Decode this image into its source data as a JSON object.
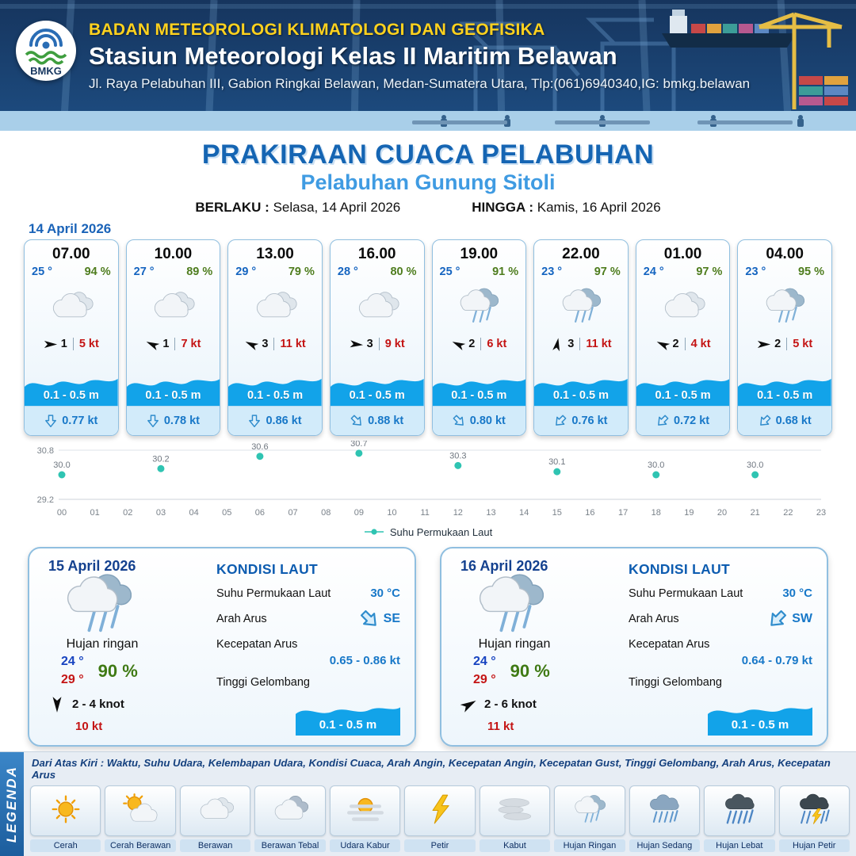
{
  "colors": {
    "navy1": "#16355e",
    "navy2": "#1d4d82",
    "yellow": "#ffd21e",
    "title_blue": "#1565b3",
    "sub_blue": "#3f9be2",
    "accent": "#1a63b8",
    "green": "#4e7d1e",
    "red": "#c41414",
    "cur_blue": "#1878c8",
    "wave_blue": "#12a3e9",
    "card_border": "#90bfe0",
    "foot_blue": "#d2ebfa"
  },
  "header": {
    "agency": "BADAN METEOROLOGI KLIMATOLOGI DAN GEOFISIKA",
    "station": "Stasiun Meteorologi Kelas II Maritim Belawan",
    "address": "Jl. Raya Pelabuhan III, Gabion Ringkai Belawan, Medan-Sumatera Utara, Tlp:(061)6940340,IG: bmkg.belawan",
    "logo_text": "BMKG"
  },
  "title": {
    "main": "PRAKIRAAN CUACA PELABUHAN",
    "subtitle": "Pelabuhan Gunung Sitoli",
    "berlaku_label": "BERLAKU :",
    "berlaku_value": "Selasa, 14 April 2026",
    "hingga_label": "HINGGA :",
    "hingga_value": "Kamis, 16 April 2026"
  },
  "forecast_date": "14 April 2026",
  "hourly": [
    {
      "time": "07.00",
      "temp": "25 °",
      "rh": "94 %",
      "icon": "cloud",
      "wind_icon": "wind-arrow",
      "wind_rot": 0,
      "wind_speed": "1",
      "gust": "5 kt",
      "wave": "0.1 - 0.5 m",
      "current_icon": "current-arrow",
      "current_rot": 0,
      "current": "0.77 kt"
    },
    {
      "time": "10.00",
      "temp": "27 °",
      "rh": "89 %",
      "icon": "cloud",
      "wind_icon": "wind-arrow",
      "wind_rot": 205,
      "wind_speed": "1",
      "gust": "7 kt",
      "wave": "0.1 - 0.5 m",
      "current_icon": "current-arrow",
      "current_rot": 0,
      "current": "0.78 kt"
    },
    {
      "time": "13.00",
      "temp": "29 °",
      "rh": "79 %",
      "icon": "cloud",
      "wind_icon": "wind-arrow",
      "wind_rot": 205,
      "wind_speed": "3",
      "gust": "11 kt",
      "wave": "0.1 - 0.5 m",
      "current_icon": "current-arrow",
      "current_rot": 0,
      "current": "0.86 kt"
    },
    {
      "time": "16.00",
      "temp": "28 °",
      "rh": "80 %",
      "icon": "cloud",
      "wind_icon": "wind-arrow",
      "wind_rot": 5,
      "wind_speed": "3",
      "gust": "9 kt",
      "wave": "0.1 - 0.5 m",
      "current_icon": "current-arrow",
      "current_rot": -45,
      "current": "0.88 kt"
    },
    {
      "time": "19.00",
      "temp": "25 °",
      "rh": "91 %",
      "icon": "rain-light",
      "wind_icon": "wind-arrow",
      "wind_rot": 205,
      "wind_speed": "2",
      "gust": "6 kt",
      "wave": "0.1 - 0.5 m",
      "current_icon": "current-arrow",
      "current_rot": -45,
      "current": "0.80 kt"
    },
    {
      "time": "22.00",
      "temp": "23 °",
      "rh": "97 %",
      "icon": "rain-light",
      "wind_icon": "wind-arrow",
      "wind_rot": 280,
      "wind_speed": "3",
      "gust": "11 kt",
      "wave": "0.1 - 0.5 m",
      "current_icon": "current-arrow",
      "current_rot": 45,
      "current": "0.76 kt"
    },
    {
      "time": "01.00",
      "temp": "24 °",
      "rh": "97 %",
      "icon": "cloud",
      "wind_icon": "wind-arrow",
      "wind_rot": 205,
      "wind_speed": "2",
      "gust": "4 kt",
      "wave": "0.1 - 0.5 m",
      "current_icon": "current-arrow",
      "current_rot": 45,
      "current": "0.72 kt"
    },
    {
      "time": "04.00",
      "temp": "23 °",
      "rh": "95 %",
      "icon": "rain-light",
      "wind_icon": "wind-arrow",
      "wind_rot": 0,
      "wind_speed": "2",
      "gust": "5 kt",
      "wave": "0.1 - 0.5 m",
      "current_icon": "current-arrow",
      "current_rot": 45,
      "current": "0.68 kt"
    }
  ],
  "chart_data": {
    "type": "line",
    "legend": "Suhu Permukaan Laut",
    "x_ticks": [
      "00",
      "01",
      "02",
      "03",
      "04",
      "05",
      "06",
      "07",
      "08",
      "09",
      "10",
      "11",
      "12",
      "13",
      "14",
      "15",
      "16",
      "17",
      "18",
      "19",
      "20",
      "21",
      "22",
      "23"
    ],
    "points": [
      {
        "h": 0,
        "v": 30.0
      },
      {
        "h": 3,
        "v": 30.2
      },
      {
        "h": 6,
        "v": 30.6
      },
      {
        "h": 9,
        "v": 30.7
      },
      {
        "h": 12,
        "v": 30.3
      },
      {
        "h": 15,
        "v": 30.1
      },
      {
        "h": 18,
        "v": 30.0
      },
      {
        "h": 21,
        "v": 30.0
      }
    ],
    "ylim": [
      29.2,
      30.8
    ],
    "point_color": "#2fc4b2"
  },
  "days": [
    {
      "date": "15 April 2026",
      "icon": "rain-light",
      "condition": "Hujan ringan",
      "temp_min": "24 °",
      "temp_max": "29 °",
      "rh": "90 %",
      "wind_icon": "wind-arrow",
      "wind_rot": 90,
      "wind_range": "2 - 4 knot",
      "gust": "10 kt",
      "sea": {
        "heading": "KONDISI LAUT",
        "sst_label": "Suhu Permukaan Laut",
        "sst": "30 °C",
        "dir_label": "Arah Arus",
        "dir": "SE",
        "dir_icon": "current-arrow",
        "dir_rot": -45,
        "speed_label": "Kecepatan Arus",
        "speed": "0.65 - 0.86 kt",
        "wave_label": "Tinggi Gelombang",
        "wave": "0.1 - 0.5 m"
      }
    },
    {
      "date": "16 April 2026",
      "icon": "rain-light",
      "condition": "Hujan ringan",
      "temp_min": "24 °",
      "temp_max": "29 °",
      "rh": "90 %",
      "wind_icon": "wind-arrow",
      "wind_rot": -30,
      "wind_range": "2 - 6 knot",
      "gust": "11 kt",
      "sea": {
        "heading": "KONDISI LAUT",
        "sst_label": "Suhu Permukaan Laut",
        "sst": "30 °C",
        "dir_label": "Arah Arus",
        "dir": "SW",
        "dir_icon": "current-arrow",
        "dir_rot": 45,
        "speed_label": "Kecepatan Arus",
        "speed": "0.64 - 0.79 kt",
        "wave_label": "Tinggi Gelombang",
        "wave": "0.1 - 0.5 m"
      }
    }
  ],
  "legend": {
    "side_label": "LEGENDA",
    "note": "Dari Atas Kiri : Waktu, Suhu Udara, Kelembapan Udara, Kondisi Cuaca, Arah Angin, Kecepatan Angin, Kecepatan Gust, Tinggi Gelombang, Arah Arus, Kecepatan Arus",
    "items": [
      {
        "label": "Cerah",
        "icon": "sun"
      },
      {
        "label": "Cerah Berawan",
        "icon": "sun-cloud"
      },
      {
        "label": "Berawan",
        "icon": "cloud"
      },
      {
        "label": "Berawan Tebal",
        "icon": "thick-cloud"
      },
      {
        "label": "Udara Kabur",
        "icon": "hazy-sun"
      },
      {
        "label": "Petir",
        "icon": "lightning"
      },
      {
        "label": "Kabut",
        "icon": "fog"
      },
      {
        "label": "Hujan Ringan",
        "icon": "rain-light"
      },
      {
        "label": "Hujan Sedang",
        "icon": "rain-medium"
      },
      {
        "label": "Hujan Lebat",
        "icon": "rain-heavy"
      },
      {
        "label": "Hujan Petir",
        "icon": "rain-thunder"
      }
    ]
  }
}
